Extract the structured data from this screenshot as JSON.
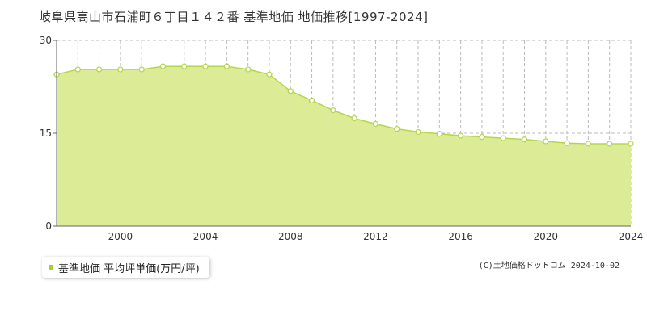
{
  "chart_data": {
    "type": "area",
    "title": "岐阜県高山市石浦町６丁目１４２番 基準地価 地価推移[1997-2024]",
    "x": [
      1997,
      1998,
      1999,
      2000,
      2001,
      2002,
      2003,
      2004,
      2005,
      2006,
      2007,
      2008,
      2009,
      2010,
      2011,
      2012,
      2013,
      2014,
      2015,
      2016,
      2017,
      2018,
      2019,
      2020,
      2021,
      2022,
      2023,
      2024
    ],
    "series": [
      {
        "name": "基準地価 平均坪単価(万円/坪)",
        "values": [
          24.5,
          25.3,
          25.3,
          25.3,
          25.3,
          25.8,
          25.8,
          25.8,
          25.8,
          25.3,
          24.5,
          21.8,
          20.3,
          18.7,
          17.4,
          16.5,
          15.7,
          15.2,
          14.9,
          14.6,
          14.4,
          14.2,
          14.0,
          13.7,
          13.4,
          13.3,
          13.3,
          13.3
        ]
      }
    ],
    "xticks": [
      "2000",
      "2004",
      "2008",
      "2012",
      "2016",
      "2020",
      "2024"
    ],
    "xtick_values": [
      2000,
      2004,
      2008,
      2012,
      2016,
      2020,
      2024
    ],
    "yticks": [
      "0",
      "15",
      "30"
    ],
    "ytick_values": [
      0,
      15,
      30
    ],
    "xlim": [
      1997,
      2024
    ],
    "ylim": [
      0,
      30
    ],
    "grid": true,
    "legend_position": "bottom-left",
    "colors": {
      "fill": "#dcec96",
      "line": "#b5d64c",
      "marker_fill": "#ffffff",
      "marker_stroke": "#b5d64c",
      "legend_marker": "#a8cc3c"
    }
  },
  "copyright": "(C)土地価格ドットコム 2024-10-02"
}
